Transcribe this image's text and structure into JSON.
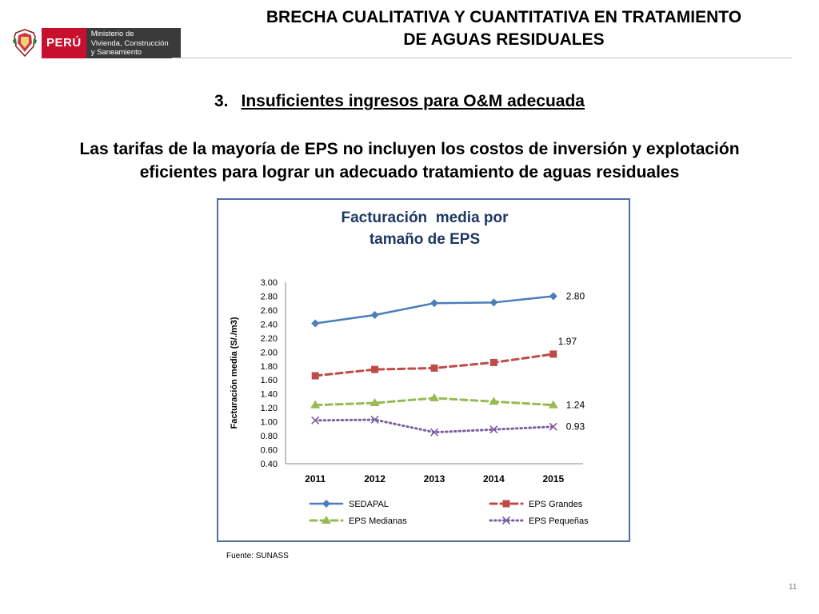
{
  "header": {
    "country": "PERÚ",
    "ministry_lines": [
      "Ministerio de",
      "Vivienda, Construcción",
      "y Saneamiento"
    ],
    "title_lines": [
      "BRECHA CUALITATIVA Y CUANTITATIVA EN TRATAMIENTO",
      "DE AGUAS RESIDUALES"
    ]
  },
  "section": {
    "number": "3.",
    "title": "Insuficientes ingresos para O&M adecuada"
  },
  "lead_lines": [
    "Las tarifas de la mayoría de EPS no incluyen los costos de inversión y explotación",
    "eficientes para lograr un adecuado tratamiento de aguas residuales"
  ],
  "chart_data": {
    "type": "line",
    "title_lines": [
      "Facturación  media por",
      "tamaño de EPS"
    ],
    "ylabel": "Facturación media (S/./m3)",
    "xlabel": "",
    "categories": [
      "2011",
      "2012",
      "2013",
      "2014",
      "2015"
    ],
    "ylim": [
      0.4,
      3.0
    ],
    "yticks": [
      "3.00",
      "2.80",
      "2.60",
      "2.40",
      "2.20",
      "2.00",
      "1.80",
      "1.60",
      "1.40",
      "1.20",
      "1.00",
      "0.80",
      "0.60",
      "0.40"
    ],
    "grid": false,
    "legend_position": "bottom",
    "series": [
      {
        "name": "SEDAPAL",
        "values": [
          2.41,
          2.53,
          2.7,
          2.71,
          2.8
        ],
        "color": "#4a7ebb",
        "dash": "solid",
        "marker": "diamond",
        "end_label": "2.80"
      },
      {
        "name": "EPS Grandes",
        "values": [
          1.66,
          1.75,
          1.77,
          1.85,
          1.97
        ],
        "color": "#be4b48",
        "dash": "dashed",
        "marker": "square",
        "end_label": "1.97"
      },
      {
        "name": "EPS Medianas",
        "values": [
          1.24,
          1.27,
          1.34,
          1.29,
          1.24
        ],
        "color": "#98b954",
        "dash": "dashed",
        "marker": "triangle",
        "end_label": "1.24"
      },
      {
        "name": "EPS Pequeñas",
        "values": [
          1.02,
          1.03,
          0.85,
          0.89,
          0.93
        ],
        "color": "#7d60a0",
        "dash": "dotted",
        "marker": "x",
        "end_label": "0.93"
      }
    ]
  },
  "source": "Fuente: SUNASS",
  "page_number": "11"
}
